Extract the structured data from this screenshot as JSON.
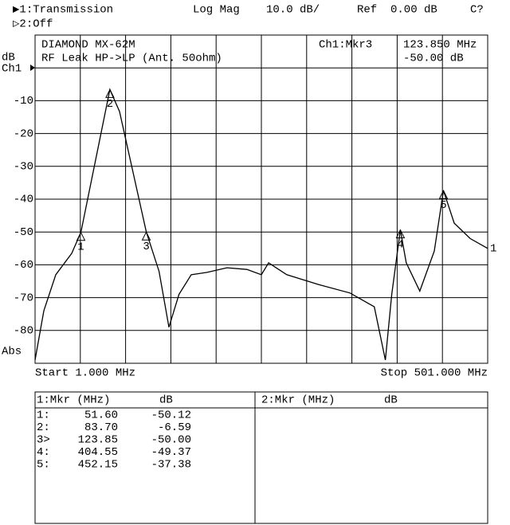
{
  "header": {
    "line1": [
      "▶1:Transmission",
      "Log Mag",
      "10.0 dB/",
      "Ref",
      "0.00 dB",
      "C?"
    ],
    "line2": "▷2:Off"
  },
  "chart_data": {
    "type": "line",
    "info_left": [
      "DIAMOND MX-62M",
      "RF Leak HP->LP (Ant. 50ohm)"
    ],
    "info_right": [
      "Ch1:Mkr3",
      "123.850 MHz",
      "-50.00 dB"
    ],
    "y_unit": "dB",
    "channel": "Ch1",
    "format": "Abs",
    "start_label": "Start 1.000 MHz",
    "stop_label": "Stop 501.000 MHz",
    "trace_label": "1",
    "color": "#000000",
    "grid": true,
    "xlim": [
      1,
      501
    ],
    "xticks": [
      1,
      51,
      101,
      151,
      201,
      251,
      301,
      351,
      401,
      451,
      501
    ],
    "ylim": [
      -90,
      10
    ],
    "yticks": [
      0,
      -10,
      -20,
      -30,
      -40,
      -50,
      -60,
      -70,
      -80
    ],
    "ytick_labels_shown": [
      -10,
      -20,
      -30,
      -40,
      -50,
      -60,
      -70,
      -80
    ],
    "x": [
      1,
      10.7,
      23.9,
      41.5,
      51.6,
      67.9,
      83.7,
      94.3,
      123.85,
      138,
      148.9,
      160,
      173.5,
      191,
      213,
      235,
      251,
      259,
      279,
      314,
      349,
      375.7,
      388,
      395,
      404.55,
      411,
      426,
      442,
      452.15,
      464,
      481.6,
      501
    ],
    "values": [
      -89,
      -74,
      -63,
      -56.5,
      -50.12,
      -28,
      -6.59,
      -13.3,
      -50,
      -62,
      -79,
      -69,
      -63,
      -62.3,
      -60.9,
      -61.4,
      -63,
      -59.4,
      -63,
      -66,
      -68.6,
      -72.8,
      -89,
      -69,
      -49.37,
      -59.4,
      -68,
      -55.8,
      -37.38,
      -47.3,
      -52,
      -55
    ],
    "markers": [
      {
        "label": "1",
        "x": 51.6,
        "y": -50.12
      },
      {
        "label": "2",
        "x": 83.7,
        "y": -6.59
      },
      {
        "label": "3",
        "x": 123.85,
        "y": -50
      },
      {
        "label": "4",
        "x": 404.55,
        "y": -49.37
      },
      {
        "label": "5",
        "x": 452.15,
        "y": -37.38
      }
    ]
  },
  "table1": {
    "header": [
      "1:Mkr (MHz)",
      "dB"
    ],
    "rows": [
      [
        "1:",
        "51.60",
        "-50.12"
      ],
      [
        "2:",
        "83.70",
        "-6.59"
      ],
      [
        "3>",
        "123.85",
        "-50.00"
      ],
      [
        "4:",
        "404.55",
        "-49.37"
      ],
      [
        "5:",
        "452.15",
        "-37.38"
      ]
    ]
  },
  "table2": {
    "header": [
      "2:Mkr (MHz)",
      "dB"
    ]
  }
}
